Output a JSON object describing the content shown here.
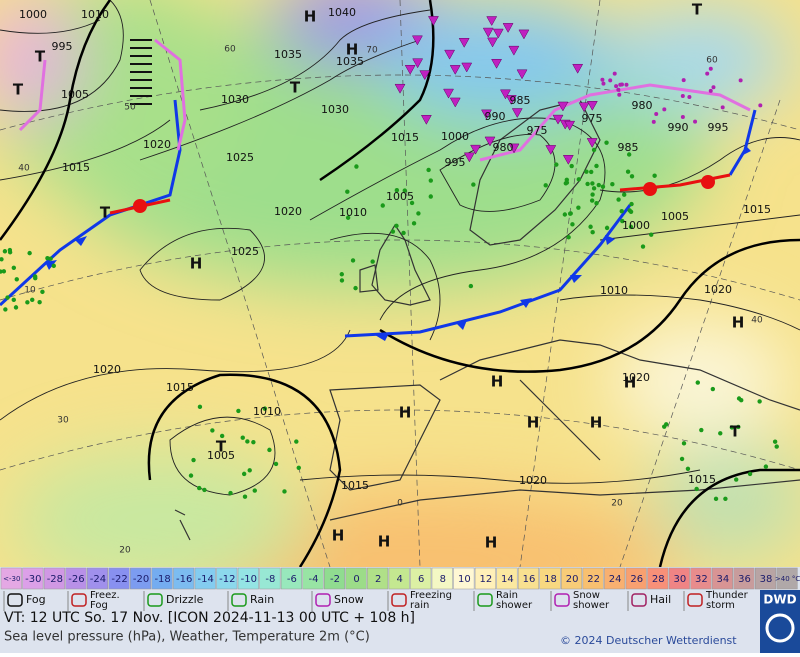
{
  "map": {
    "pressure_labels": [
      "1000",
      "1010",
      "995",
      "1005",
      "1015",
      "1020",
      "1025",
      "1030",
      "1035",
      "1040",
      "1035",
      "1030",
      "1020",
      "1025",
      "1010",
      "1005",
      "1015",
      "1000",
      "995",
      "990",
      "985",
      "980",
      "975",
      "975",
      "980",
      "985",
      "990",
      "995",
      "1000",
      "1005",
      "1015",
      "1010",
      "1020",
      "1020",
      "1020",
      "1015",
      "1010",
      "1005",
      "1015",
      "1020",
      "1015"
    ],
    "temperature_labels": [
      "60",
      "50",
      "40",
      "30",
      "20",
      "0",
      "20",
      "40",
      "60",
      "70",
      "10"
    ],
    "centers": [
      "H",
      "H",
      "T",
      "T",
      "T",
      "T",
      "H",
      "H",
      "H",
      "H",
      "H",
      "H",
      "H",
      "T",
      "T",
      "T",
      "H",
      "H",
      "H"
    ]
  },
  "temperature_scale": {
    "labels": [
      "<-30",
      "-30",
      "-28",
      "-26",
      "-24",
      "-22",
      "-20",
      "-18",
      "-16",
      "-14",
      "-12",
      "-10",
      "-8",
      "-6",
      "-4",
      "-2",
      "0",
      "2",
      "4",
      "6",
      "8",
      "10",
      "12",
      "14",
      "16",
      "18",
      "20",
      "22",
      "24",
      "26",
      "28",
      "30",
      "32",
      "34",
      "36",
      "38",
      ">40 °C"
    ],
    "colors": [
      "#e4a8e4",
      "#dca0e8",
      "#d098e4",
      "#b890e8",
      "#a090ec",
      "#8890f0",
      "#7c9cf0",
      "#74acf0",
      "#7cbcf0",
      "#84ccf0",
      "#8cd8ec",
      "#94e4e4",
      "#98e8d4",
      "#98e8bc",
      "#98e4a4",
      "#90dc90",
      "#9cdc88",
      "#b0e088",
      "#c4e890",
      "#dcf0a4",
      "#f4f8c4",
      "#fff8d4",
      "#fff0b8",
      "#fbe8a0",
      "#f8e090",
      "#f8d880",
      "#f8cc78",
      "#f8c070",
      "#f8b070",
      "#f8a070",
      "#f89078",
      "#f08484",
      "#e88c8c",
      "#d89494",
      "#c89c9c",
      "#b8a4a4",
      "#b0a8a8"
    ]
  },
  "weather_legend": [
    [
      "Fog"
    ],
    [
      "Freez.",
      "Fog"
    ],
    [
      "Drizzle"
    ],
    [
      "Rain"
    ],
    [
      "Snow"
    ],
    [
      "Freezing",
      "rain"
    ],
    [
      "Rain",
      "shower"
    ],
    [
      "Snow",
      "shower"
    ],
    [
      "Hail"
    ],
    [
      "Thunder",
      "storm"
    ]
  ],
  "footer": {
    "valid_time": "VT: 12 UTC So.  17 Nov. [ICON 2024-11-13  00 UTC + 108 h]",
    "description": "Sea level pressure (hPa), Weather, Temperature 2m (°C)",
    "copyright": "© 2024 Deutscher Wetterdienst",
    "logo": "DWD"
  }
}
